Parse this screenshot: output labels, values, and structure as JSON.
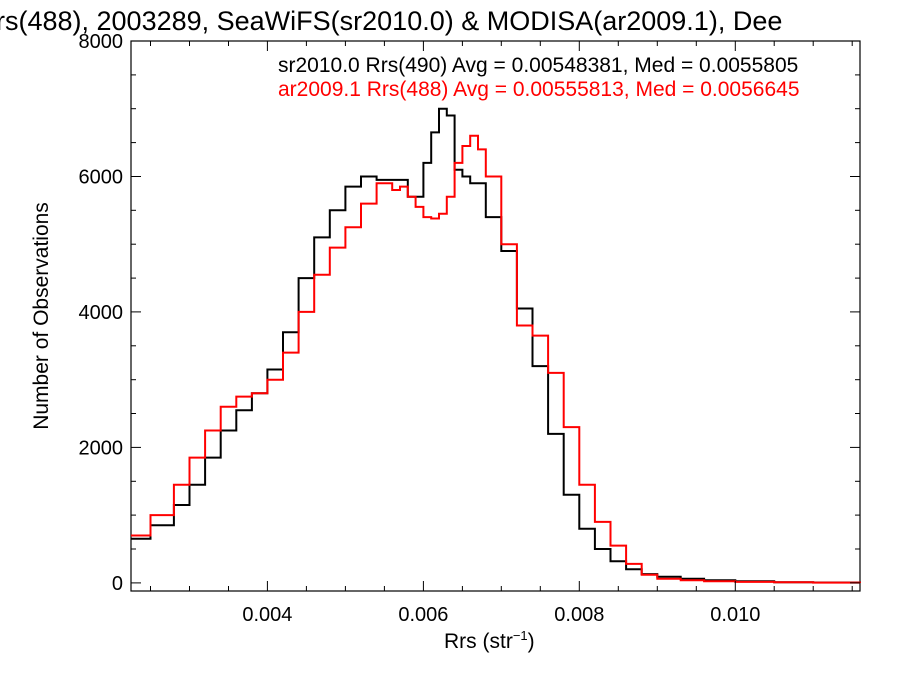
{
  "chart_data": {
    "type": "line",
    "step": true,
    "title": "rs(488), 2003289, SeaWiFS(sr2010.0) & MODISA(ar2009.1), Dee",
    "xlabel": "Rrs (str",
    "xlabel_sup": "−1",
    "xlabel_close": ")",
    "ylabel": "Number of Observations",
    "xlim": [
      0.00225,
      0.0116
    ],
    "ylim": [
      -120,
      8000
    ],
    "xticks": [
      0.004,
      0.006,
      0.008,
      0.01
    ],
    "xtick_labels": [
      "0.004",
      "0.006",
      "0.008",
      "0.010"
    ],
    "yticks": [
      0,
      2000,
      4000,
      6000,
      8000
    ],
    "ytick_labels": [
      "0",
      "2000",
      "4000",
      "6000",
      "8000"
    ],
    "grid": false,
    "annotations": [
      {
        "text": "sr2010.0 Rrs(490) Avg = 0.00548381, Med = 0.0055805",
        "color": "#000000"
      },
      {
        "text": "ar2009.1 Rrs(488) Avg = 0.00555813, Med = 0.0056645",
        "color": "#ff0000"
      }
    ],
    "series": [
      {
        "name": "sr2010.0 Rrs(490)",
        "color": "#000000",
        "x": [
          0.00225,
          0.0025,
          0.0028,
          0.003,
          0.0032,
          0.0034,
          0.0036,
          0.0038,
          0.004,
          0.0042,
          0.0044,
          0.0046,
          0.0048,
          0.005,
          0.0052,
          0.0054,
          0.0056,
          0.0058,
          0.006,
          0.0061,
          0.0062,
          0.0063,
          0.0064,
          0.0065,
          0.0066,
          0.0068,
          0.007,
          0.0072,
          0.0074,
          0.0076,
          0.0078,
          0.008,
          0.0082,
          0.0084,
          0.0086,
          0.0088,
          0.009,
          0.0093,
          0.0096,
          0.01,
          0.0105,
          0.011,
          0.0116
        ],
        "y": [
          650,
          850,
          1150,
          1450,
          1850,
          2250,
          2550,
          2800,
          3150,
          3700,
          4500,
          5100,
          5500,
          5850,
          6000,
          5950,
          5950,
          5700,
          6200,
          6650,
          7000,
          6900,
          6100,
          6000,
          5900,
          5400,
          4900,
          4050,
          3200,
          2200,
          1300,
          800,
          500,
          320,
          200,
          130,
          90,
          60,
          40,
          25,
          10,
          5,
          0
        ]
      },
      {
        "name": "ar2009.1 Rrs(488)",
        "color": "#ff0000",
        "x": [
          0.00225,
          0.0025,
          0.0028,
          0.003,
          0.0032,
          0.0034,
          0.0036,
          0.0038,
          0.004,
          0.0042,
          0.0044,
          0.0046,
          0.0048,
          0.005,
          0.0052,
          0.0054,
          0.0056,
          0.0057,
          0.0058,
          0.0059,
          0.006,
          0.0061,
          0.0062,
          0.0063,
          0.0064,
          0.0065,
          0.0066,
          0.0067,
          0.0068,
          0.007,
          0.0072,
          0.0074,
          0.0076,
          0.0078,
          0.008,
          0.0082,
          0.0084,
          0.0086,
          0.0088,
          0.009,
          0.0093,
          0.0096,
          0.01,
          0.0105,
          0.011,
          0.0116
        ],
        "y": [
          700,
          1000,
          1450,
          1850,
          2250,
          2600,
          2750,
          2800,
          3000,
          3400,
          4000,
          4550,
          4950,
          5250,
          5600,
          5900,
          5800,
          5850,
          5700,
          5550,
          5400,
          5380,
          5450,
          5700,
          6200,
          6450,
          6600,
          6400,
          6000,
          5000,
          3800,
          3650,
          3100,
          2300,
          1450,
          900,
          550,
          280,
          120,
          60,
          40,
          25,
          15,
          8,
          4,
          0
        ]
      }
    ]
  }
}
